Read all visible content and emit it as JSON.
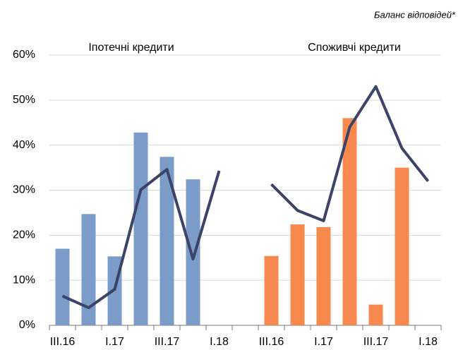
{
  "chart_data": {
    "type": "bar_line",
    "subtitle": "Баланс відповідей*",
    "annotations": [
      "Іпотечні кредити",
      "Споживчі кредити"
    ],
    "categories": [
      "III.16",
      null,
      "I.17",
      null,
      "III.17",
      null,
      "I.18",
      null,
      "III.16",
      null,
      "I.17",
      null,
      "III.17",
      null,
      "I.18"
    ],
    "series": [
      {
        "type": "bar",
        "color": "#7b9cc9",
        "values": [
          17.0,
          24.7,
          15.3,
          42.8,
          37.4,
          32.4,
          null,
          null,
          null,
          null,
          null,
          null,
          null,
          null,
          null
        ]
      },
      {
        "type": "bar",
        "color": "#f7894f",
        "values": [
          null,
          null,
          null,
          null,
          null,
          null,
          null,
          null,
          15.4,
          22.4,
          21.8,
          46.0,
          4.6,
          35.0,
          null
        ]
      },
      {
        "type": "line",
        "color": "#3b4468",
        "values": [
          6.5,
          3.9,
          8.0,
          30.1,
          34.6,
          14.7,
          34.3,
          null,
          31.3,
          25.5,
          23.2,
          44.0,
          53.0,
          39.3,
          32.0
        ]
      }
    ],
    "ylim": [
      0,
      60
    ],
    "yticks": [
      {
        "value": 0,
        "label": "0%"
      },
      {
        "value": 10,
        "label": "10%"
      },
      {
        "value": 20,
        "label": "20%"
      },
      {
        "value": 30,
        "label": "30%"
      },
      {
        "value": 40,
        "label": "40%"
      },
      {
        "value": 50,
        "label": "50%"
      },
      {
        "value": 60,
        "label": "60%"
      }
    ],
    "grid": true
  }
}
